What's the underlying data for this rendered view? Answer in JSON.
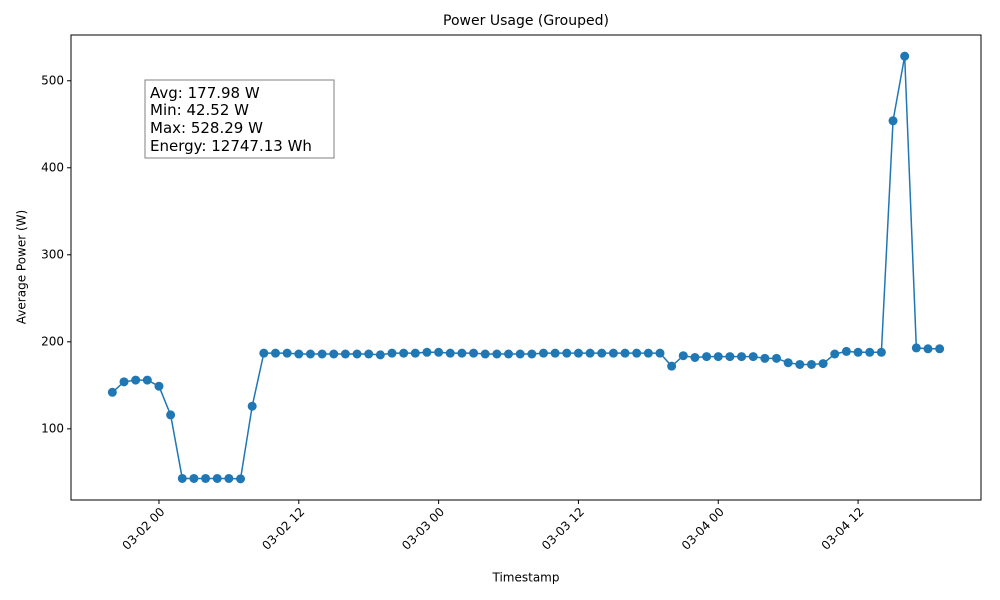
{
  "chart_data": {
    "type": "line",
    "title": "Power Usage (Grouped)",
    "x_label": "Timestamp",
    "y_label": "Average Power (W)",
    "annotation": [
      "Avg: 177.98 W",
      "Min: 42.52 W",
      "Max: 528.29 W",
      "Energy: 12747.13 Wh"
    ],
    "x": [
      "03-01 20",
      "03-01 21",
      "03-01 22",
      "03-01 23",
      "03-02 00",
      "03-02 01",
      "03-02 02",
      "03-02 03",
      "03-02 04",
      "03-02 05",
      "03-02 06",
      "03-02 07",
      "03-02 08",
      "03-02 09",
      "03-02 10",
      "03-02 11",
      "03-02 12",
      "03-02 13",
      "03-02 14",
      "03-02 15",
      "03-02 16",
      "03-02 17",
      "03-02 18",
      "03-02 19",
      "03-02 20",
      "03-02 21",
      "03-02 22",
      "03-02 23",
      "03-03 00",
      "03-03 01",
      "03-03 02",
      "03-03 03",
      "03-03 04",
      "03-03 05",
      "03-03 06",
      "03-03 07",
      "03-03 08",
      "03-03 09",
      "03-03 10",
      "03-03 11",
      "03-03 12",
      "03-03 13",
      "03-03 14",
      "03-03 15",
      "03-03 16",
      "03-03 17",
      "03-03 18",
      "03-03 19",
      "03-03 20",
      "03-03 21",
      "03-03 22",
      "03-03 23",
      "03-04 00",
      "03-04 01",
      "03-04 02",
      "03-04 03",
      "03-04 04",
      "03-04 05",
      "03-04 06",
      "03-04 07",
      "03-04 08",
      "03-04 09",
      "03-04 10",
      "03-04 11",
      "03-04 12",
      "03-04 13",
      "03-04 14",
      "03-04 15",
      "03-04 16",
      "03-04 17",
      "03-04 18",
      "03-04 19"
    ],
    "series": [
      {
        "name": "Average Power",
        "color": "#1f77b4",
        "values": [
          142,
          154,
          156,
          156,
          149,
          116,
          43,
          43,
          43,
          43,
          43,
          42.52,
          126,
          187,
          187,
          187,
          186,
          186,
          186,
          186,
          186,
          186,
          186,
          185,
          187,
          187,
          187,
          188,
          188,
          187,
          187,
          187,
          186,
          186,
          186,
          186,
          186,
          187,
          187,
          187,
          187,
          187,
          187,
          187,
          187,
          187,
          187,
          187,
          172,
          184,
          182,
          183,
          183,
          183,
          183,
          183,
          181,
          181,
          176,
          174,
          174,
          175,
          186,
          189,
          188,
          188,
          188,
          454,
          528.29,
          193,
          192,
          192
        ]
      }
    ],
    "xlim": [
      "03-01 16:27",
      "03-04 22:33"
    ],
    "xticks": [
      "03-02 00",
      "03-02 12",
      "03-03 00",
      "03-03 12",
      "03-04 00",
      "03-04 12"
    ],
    "ylim": [
      18.23,
      552.58
    ],
    "yticks": [
      100,
      200,
      300,
      400,
      500
    ]
  }
}
